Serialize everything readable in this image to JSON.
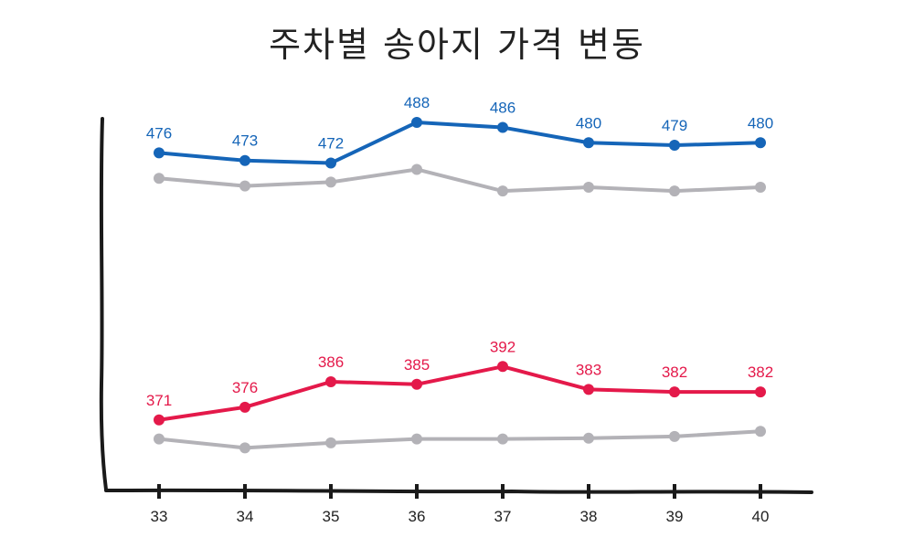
{
  "chart_data": {
    "type": "line",
    "title": "주차별 송아지 가격 변동",
    "xlabel": "",
    "ylabel": "",
    "categories": [
      "33",
      "34",
      "35",
      "36",
      "37",
      "38",
      "39",
      "40"
    ],
    "ylim": [
      335,
      502
    ],
    "grid": false,
    "series": [
      {
        "values": [
          476,
          473,
          472,
          488,
          486,
          480,
          479,
          480
        ],
        "color": "#1565b8",
        "labeled": true
      },
      {
        "values": [
          466,
          463,
          464.5,
          469.5,
          461,
          462.5,
          461,
          462.5
        ],
        "color": "#b3b2b7",
        "labeled": false
      },
      {
        "values": [
          371,
          376,
          386,
          385,
          392,
          383,
          382,
          382
        ],
        "color": "#e4194a",
        "labeled": true
      },
      {
        "values": [
          363.5,
          360,
          362,
          363.5,
          363.5,
          363.8,
          364.5,
          366.5
        ],
        "color": "#b3b2b7",
        "labeled": false
      }
    ]
  }
}
